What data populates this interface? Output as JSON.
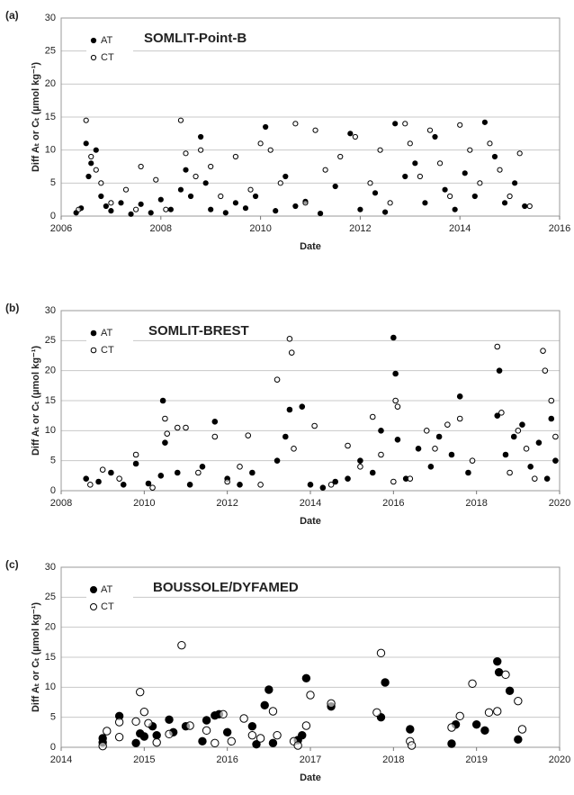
{
  "chart_data": [
    {
      "type": "scatter",
      "panel": "(a)",
      "title": "SOMLIT-Point-B",
      "xlabel": "Date",
      "ylabel": "Diff Aₜ or Cₜ (µmol kg⁻¹)",
      "xlim": [
        2006,
        2016
      ],
      "xticks": [
        2006,
        2008,
        2010,
        2012,
        2014,
        2016
      ],
      "ylim": [
        0,
        30
      ],
      "yticks": [
        0,
        5,
        10,
        15,
        20,
        25,
        30
      ],
      "grid": true,
      "legend": "upper left",
      "series": [
        {
          "name": "AT",
          "marker": "filled",
          "color": "#000000",
          "x": [
            2006.3,
            2006.4,
            2006.5,
            2006.55,
            2006.6,
            2006.7,
            2006.8,
            2006.9,
            2007.0,
            2007.2,
            2007.4,
            2007.6,
            2007.8,
            2008.0,
            2008.2,
            2008.4,
            2008.5,
            2008.6,
            2008.8,
            2008.9,
            2009.0,
            2009.3,
            2009.5,
            2009.7,
            2009.9,
            2010.1,
            2010.3,
            2010.5,
            2010.7,
            2010.9,
            2011.2,
            2011.5,
            2011.8,
            2012.0,
            2012.3,
            2012.5,
            2012.7,
            2012.9,
            2013.1,
            2013.3,
            2013.5,
            2013.7,
            2013.9,
            2014.1,
            2014.3,
            2014.5,
            2014.7,
            2014.9,
            2015.1,
            2015.3
          ],
          "values": [
            0.5,
            1.2,
            11,
            6,
            8,
            10,
            3,
            1.5,
            0.8,
            2,
            0.3,
            1.8,
            0.5,
            2.5,
            1,
            4,
            7,
            3,
            12,
            5,
            1,
            0.5,
            2,
            1.2,
            3,
            13.5,
            0.8,
            6,
            1.5,
            2.2,
            0.4,
            4.5,
            12.5,
            1,
            3.5,
            0.6,
            14,
            6,
            8,
            2,
            12,
            4,
            1,
            6.5,
            3,
            14.2,
            9,
            2,
            5,
            1.5
          ]
        },
        {
          "name": "CT",
          "marker": "open",
          "color": "#000000",
          "x": [
            2006.35,
            2006.5,
            2006.6,
            2006.7,
            2006.8,
            2007.0,
            2007.3,
            2007.5,
            2007.6,
            2007.9,
            2008.1,
            2008.4,
            2008.5,
            2008.7,
            2008.8,
            2009.0,
            2009.2,
            2009.5,
            2009.8,
            2010.0,
            2010.2,
            2010.4,
            2010.7,
            2010.9,
            2011.1,
            2011.3,
            2011.6,
            2011.9,
            2012.2,
            2012.4,
            2012.6,
            2012.9,
            2013.0,
            2013.2,
            2013.4,
            2013.6,
            2013.8,
            2014.0,
            2014.2,
            2014.4,
            2014.6,
            2014.8,
            2015.0,
            2015.2,
            2015.4
          ],
          "values": [
            1,
            14.5,
            9,
            7,
            5,
            2,
            4,
            1,
            7.5,
            5.5,
            1,
            14.5,
            9.5,
            6,
            10,
            7.5,
            3,
            9,
            4,
            11,
            10,
            5,
            14,
            2,
            13,
            7,
            9,
            12,
            5,
            10,
            2,
            14,
            11,
            6,
            13,
            8,
            3,
            13.8,
            10,
            5,
            11,
            7,
            3,
            9.5,
            1.5
          ]
        }
      ]
    },
    {
      "type": "scatter",
      "panel": "(b)",
      "title": "SOMLIT-BREST",
      "xlabel": "Date",
      "ylabel": "Diff Aₜ or Cₜ (µmol kg⁻¹)",
      "xlim": [
        2008,
        2020
      ],
      "xticks": [
        2008,
        2010,
        2012,
        2014,
        2016,
        2018,
        2020
      ],
      "ylim": [
        0,
        30
      ],
      "yticks": [
        0,
        5,
        10,
        15,
        20,
        25,
        30
      ],
      "grid": true,
      "legend": "upper left",
      "series": [
        {
          "name": "AT",
          "marker": "filled",
          "color": "#000000",
          "x": [
            2008.6,
            2008.9,
            2009.2,
            2009.5,
            2009.8,
            2010.1,
            2010.4,
            2010.45,
            2010.5,
            2010.8,
            2011.1,
            2011.4,
            2011.7,
            2012.0,
            2012.3,
            2012.6,
            2013.2,
            2013.4,
            2013.5,
            2013.8,
            2014.0,
            2014.3,
            2014.6,
            2014.9,
            2015.2,
            2015.5,
            2015.7,
            2016.0,
            2016.05,
            2016.1,
            2016.3,
            2016.6,
            2016.9,
            2017.1,
            2017.4,
            2017.6,
            2017.8,
            2018.5,
            2018.55,
            2018.7,
            2018.9,
            2019.1,
            2019.3,
            2019.5,
            2019.7,
            2019.8,
            2019.9
          ],
          "values": [
            2,
            1.5,
            3,
            1,
            4.5,
            1.2,
            2.5,
            15,
            8,
            3,
            1,
            4,
            11.5,
            2,
            1,
            3,
            5,
            9,
            13.5,
            14,
            1,
            0.5,
            1.5,
            2,
            5,
            3,
            10,
            25.5,
            19.5,
            8.5,
            2,
            7,
            4,
            9,
            6,
            15.7,
            3,
            12.5,
            20,
            6,
            9,
            11,
            4,
            8,
            2,
            12,
            5
          ]
        },
        {
          "name": "CT",
          "marker": "open",
          "color": "#000000",
          "x": [
            2008.7,
            2009.0,
            2009.4,
            2009.8,
            2010.2,
            2010.5,
            2010.55,
            2010.8,
            2011.0,
            2011.3,
            2011.7,
            2012.0,
            2012.3,
            2012.5,
            2012.8,
            2013.2,
            2013.5,
            2013.55,
            2013.6,
            2014.1,
            2014.5,
            2014.9,
            2015.2,
            2015.5,
            2015.7,
            2016.0,
            2016.05,
            2016.1,
            2016.4,
            2016.8,
            2017.0,
            2017.3,
            2017.6,
            2017.9,
            2018.5,
            2018.6,
            2018.8,
            2019.0,
            2019.2,
            2019.4,
            2019.6,
            2019.65,
            2019.8,
            2019.9
          ],
          "values": [
            1,
            3.5,
            2,
            6,
            0.5,
            12,
            9.5,
            10.5,
            10.5,
            3,
            9,
            1.5,
            4,
            9.2,
            1,
            18.5,
            25.3,
            23,
            7,
            10.8,
            1,
            7.5,
            4,
            12.3,
            6,
            1.5,
            15,
            14,
            2,
            10,
            7,
            11,
            12,
            5,
            24,
            13,
            3,
            10,
            7,
            2,
            23.3,
            20,
            15,
            9
          ]
        }
      ]
    },
    {
      "type": "scatter",
      "panel": "(c)",
      "title": "BOUSSOLE/DYFAMED",
      "xlabel": "Date",
      "ylabel": "Diff Aₜ or Cₜ (µmol kg⁻¹)",
      "xlim": [
        2014,
        2020
      ],
      "xticks": [
        2014,
        2015,
        2016,
        2017,
        2018,
        2019,
        2020
      ],
      "ylim": [
        0,
        30
      ],
      "yticks": [
        0,
        5,
        10,
        15,
        20,
        25,
        30
      ],
      "grid": true,
      "legend": "upper left",
      "series": [
        {
          "name": "AT",
          "marker": "filled",
          "color": "#000000",
          "x": [
            2014.5,
            2014.5,
            2014.7,
            2014.9,
            2014.95,
            2015.0,
            2015.1,
            2015.15,
            2015.3,
            2015.35,
            2015.5,
            2015.7,
            2015.75,
            2015.85,
            2015.9,
            2016.0,
            2016.3,
            2016.35,
            2016.45,
            2016.5,
            2016.55,
            2016.85,
            2016.9,
            2016.95,
            2017.25,
            2017.85,
            2017.9,
            2018.2,
            2018.7,
            2018.75,
            2019.0,
            2019.1,
            2019.25,
            2019.27,
            2019.4,
            2019.5
          ],
          "values": [
            1.5,
            0.8,
            5.2,
            0.7,
            2.3,
            1.8,
            3.5,
            2,
            4.6,
            2.5,
            3.5,
            1,
            4.5,
            5.3,
            5.5,
            2.5,
            3.5,
            0.5,
            7,
            9.6,
            0.7,
            1.2,
            2,
            11.5,
            6.8,
            5,
            10.8,
            3,
            0.6,
            3.8,
            3.8,
            2.8,
            14.3,
            12.5,
            9.4,
            1.3
          ]
        },
        {
          "name": "CT",
          "marker": "open",
          "color": "#000000",
          "x": [
            2014.5,
            2014.55,
            2014.7,
            2014.7,
            2014.9,
            2014.95,
            2015.0,
            2015.05,
            2015.15,
            2015.3,
            2015.45,
            2015.55,
            2015.75,
            2015.85,
            2015.95,
            2016.05,
            2016.2,
            2016.3,
            2016.4,
            2016.55,
            2016.6,
            2016.8,
            2016.85,
            2016.95,
            2017.0,
            2017.25,
            2017.85,
            2017.8,
            2018.2,
            2018.22,
            2018.7,
            2018.8,
            2018.95,
            2019.15,
            2019.25,
            2019.35,
            2019.5,
            2019.55
          ],
          "values": [
            0.2,
            2.7,
            1.7,
            4.2,
            4.3,
            9.2,
            5.9,
            4,
            0.8,
            2.2,
            17,
            3.6,
            2.8,
            0.7,
            5.5,
            1,
            4.8,
            2,
            1.5,
            6,
            2,
            1,
            0.3,
            3.6,
            8.7,
            7.3,
            15.7,
            5.8,
            1,
            0.3,
            3.3,
            5.2,
            10.6,
            5.8,
            6,
            12.1,
            7.7,
            3
          ]
        }
      ]
    }
  ]
}
